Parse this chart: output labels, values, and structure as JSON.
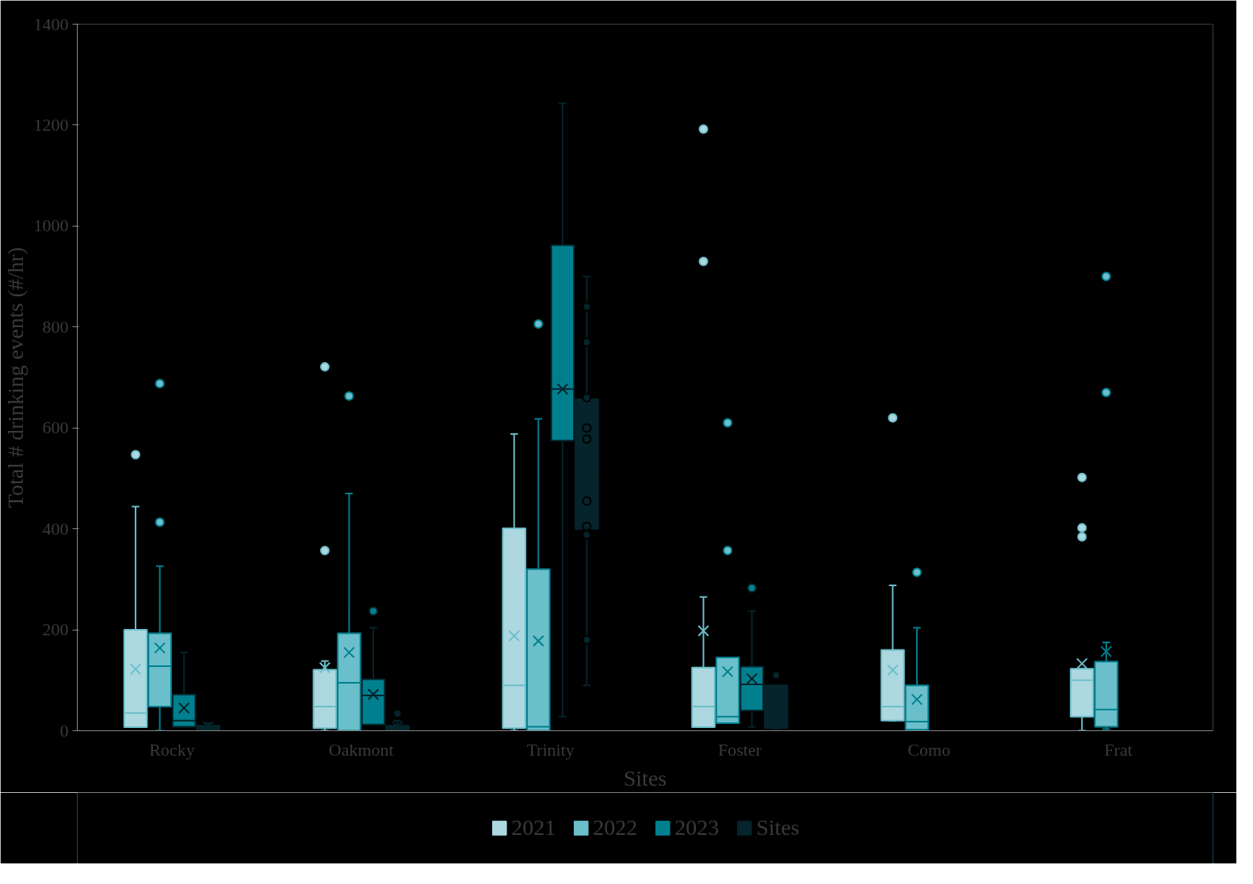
{
  "chart_data": {
    "type": "box",
    "xlabel": "Sites",
    "ylabel": "Total # drinking events (#/hr)",
    "categories": [
      "Rocky",
      "Oakmont",
      "Trinity",
      "Foster",
      "Como",
      "Frat"
    ],
    "ylim": [
      0,
      1400
    ],
    "yticks": [
      0,
      200,
      400,
      600,
      800,
      1000,
      1200,
      1400
    ],
    "grid": false,
    "legend": "bottom",
    "series": [
      {
        "name": "2021",
        "color": "#add8e0",
        "boxes": [
          {
            "low": 7,
            "q1": 7,
            "median": 35,
            "q3": 200,
            "high": 444,
            "mean": 122,
            "outliers": [
              547
            ]
          },
          {
            "low": 0,
            "q1": 5,
            "median": 48,
            "q3": 121,
            "high": 138,
            "mean": 125,
            "outliers": [
              721,
              357
            ]
          },
          {
            "low": 0,
            "q1": 5,
            "median": 90,
            "q3": 401,
            "high": 588,
            "mean": 188
          },
          {
            "low": 7,
            "q1": 7,
            "median": 48,
            "q3": 125,
            "high": 265,
            "mean": 198,
            "outliers": [
              1192,
              930
            ]
          },
          {
            "low": 20,
            "q1": 20,
            "median": 48,
            "q3": 160,
            "high": 288,
            "mean": 120,
            "outliers": [
              620
            ]
          },
          {
            "low": 0,
            "q1": 28,
            "median": 100,
            "q3": 123,
            "high": 123,
            "mean": 133,
            "outliers": [
              502,
              402,
              384
            ]
          }
        ]
      },
      {
        "name": "2022",
        "color": "#6bbfca",
        "boxes": [
          {
            "low": 0,
            "q1": 48,
            "median": 128,
            "q3": 193,
            "high": 326,
            "mean": 164,
            "outliers": [
              688,
              413
            ]
          },
          {
            "low": 0,
            "q1": 0,
            "median": 95,
            "q3": 193,
            "high": 470,
            "mean": 155,
            "outliers": [
              663
            ]
          },
          {
            "low": 0,
            "q1": 0,
            "median": 8,
            "q3": 320,
            "high": 618,
            "mean": 178,
            "outliers": [
              806
            ]
          },
          {
            "low": 15,
            "q1": 15,
            "median": 28,
            "q3": 145,
            "high": 145,
            "mean": 117,
            "outliers": [
              610,
              357
            ]
          },
          {
            "low": 0,
            "q1": 2,
            "median": 18,
            "q3": 90,
            "high": 204,
            "mean": 62,
            "outliers": [
              314
            ]
          },
          {
            "low": 3,
            "q1": 8,
            "median": 42,
            "q3": 137,
            "high": 175,
            "mean": 157,
            "outliers": [
              900,
              670
            ]
          }
        ]
      },
      {
        "name": "2023",
        "color": "#00808f",
        "boxes": [
          {
            "low": 8,
            "q1": 8,
            "median": 20,
            "q3": 72,
            "high": 155,
            "mean": 45
          },
          {
            "low": 12,
            "q1": 12,
            "median": 70,
            "q3": 102,
            "high": 204,
            "mean": 72,
            "outliers": [
              237
            ]
          },
          {
            "low": 28,
            "q1": 575,
            "median": 677,
            "q3": 962,
            "high": 1243,
            "mean": 677
          },
          {
            "low": 8,
            "q1": 40,
            "median": 92,
            "q3": 127,
            "high": 237,
            "mean": 103,
            "outliers": [
              283
            ]
          },
          null,
          null
        ]
      },
      {
        "name": "Sites",
        "color": "#05242b",
        "boxes": [
          {
            "low": 0,
            "q1": 2,
            "median": 5,
            "q3": 10,
            "high": 15,
            "mean": 8
          },
          {
            "low": 0,
            "q1": 2,
            "median": 5,
            "q3": 10,
            "high": 20,
            "mean": 8,
            "outliers": [
              34
            ]
          },
          {
            "low": 90,
            "q1": 400,
            "median": 513,
            "q3": 657,
            "high": 900,
            "mean": 520,
            "outliers": [
              840,
              770,
              660,
              600,
              578,
              455,
              405,
              388,
              180
            ]
          },
          {
            "low": 0,
            "q1": 5,
            "median": 45,
            "q3": 90,
            "high": 90,
            "mean": 55,
            "outliers": [
              110
            ]
          },
          null,
          null
        ]
      }
    ]
  }
}
